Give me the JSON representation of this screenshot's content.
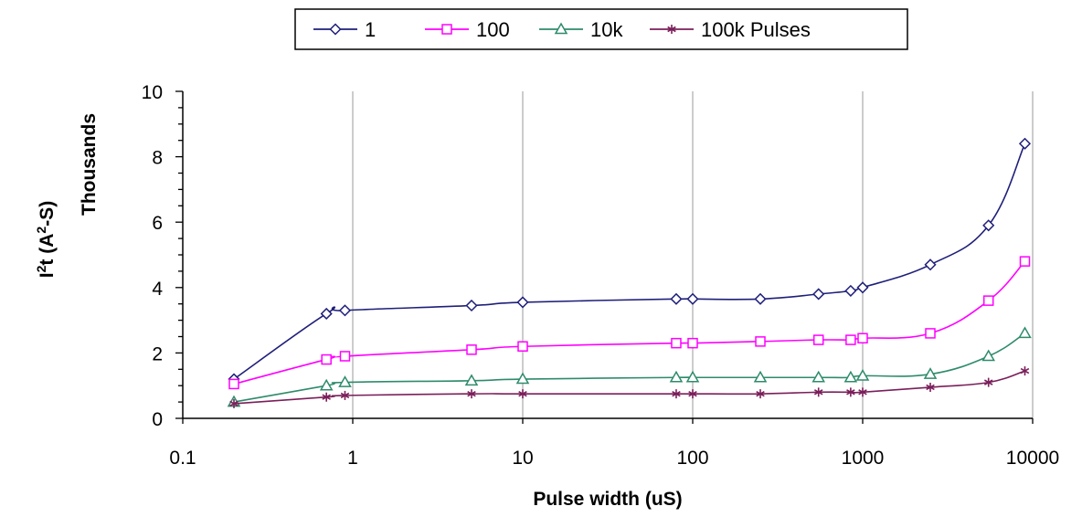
{
  "chart_data": {
    "type": "line",
    "xscale": "log",
    "xlim": [
      0.1,
      10000
    ],
    "ylim": [
      0,
      10
    ],
    "x_ticks": [
      "0.1",
      "1",
      "10",
      "100",
      "1000",
      "10000"
    ],
    "y_ticks": [
      "0",
      "2",
      "4",
      "6",
      "8",
      "10"
    ],
    "xlabel": "Pulse width (uS)",
    "ylabel_main": "I",
    "ylabel_sup1": "2",
    "ylabel_mid": "t (A",
    "ylabel_sup2": "2",
    "ylabel_end": "-S)",
    "ylabel_units": "Thousands",
    "grid": "vertical",
    "legend": "top-center",
    "series": [
      {
        "name": "1",
        "color": "#1f1f7a",
        "marker": "diamond",
        "x": [
          0.2,
          0.7,
          0.9,
          5,
          10,
          80,
          100,
          250,
          550,
          850,
          1000,
          2500,
          5500,
          9000
        ],
        "y": [
          1.2,
          3.2,
          3.3,
          3.45,
          3.55,
          3.65,
          3.65,
          3.65,
          3.8,
          3.9,
          4.0,
          4.7,
          5.9,
          8.4
        ]
      },
      {
        "name": "100",
        "color": "#ff00ff",
        "marker": "square",
        "x": [
          0.2,
          0.7,
          0.9,
          5,
          10,
          80,
          100,
          250,
          550,
          850,
          1000,
          2500,
          5500,
          9000
        ],
        "y": [
          1.05,
          1.8,
          1.9,
          2.1,
          2.2,
          2.3,
          2.3,
          2.35,
          2.4,
          2.4,
          2.45,
          2.6,
          3.6,
          4.8
        ]
      },
      {
        "name": "10k",
        "color": "#2e8b6a",
        "marker": "triangle",
        "x": [
          0.2,
          0.7,
          0.9,
          5,
          10,
          80,
          100,
          250,
          550,
          850,
          1000,
          2500,
          5500,
          9000
        ],
        "y": [
          0.5,
          1.0,
          1.1,
          1.15,
          1.2,
          1.25,
          1.25,
          1.25,
          1.25,
          1.25,
          1.3,
          1.35,
          1.9,
          2.6
        ]
      },
      {
        "name": "100k Pulses",
        "color": "#7a1f5a",
        "marker": "star",
        "x": [
          0.2,
          0.7,
          0.9,
          5,
          10,
          80,
          100,
          250,
          550,
          850,
          1000,
          2500,
          5500,
          9000
        ],
        "y": [
          0.45,
          0.65,
          0.7,
          0.75,
          0.75,
          0.75,
          0.75,
          0.75,
          0.8,
          0.8,
          0.8,
          0.95,
          1.1,
          1.45
        ]
      }
    ]
  }
}
